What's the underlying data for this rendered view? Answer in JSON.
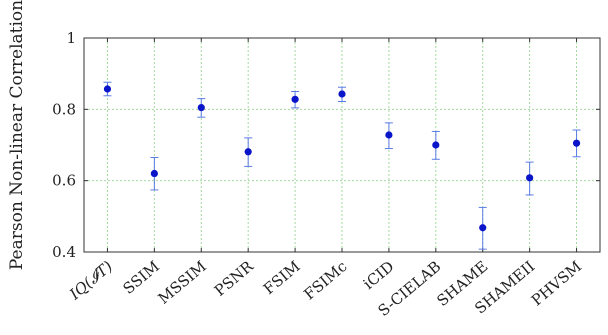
{
  "chart_data": {
    "type": "scatter",
    "ylabel": "Pearson Non-linear Correlation",
    "xlabel": "",
    "ylim": [
      0.4,
      1.0
    ],
    "yticks": [
      0.4,
      0.6,
      0.8,
      1.0
    ],
    "ytick_labels": [
      "0.4",
      "0.6",
      "0.8",
      "1"
    ],
    "grid": true,
    "categories": [
      "IQ(𝓘T)",
      "SSIM",
      "MSSIM",
      "PSNR",
      "FSIM",
      "FSIMc",
      "iCID",
      "S-CIELAB",
      "SHAME",
      "SHAMEII",
      "PHVSM"
    ],
    "values": [
      0.857,
      0.62,
      0.805,
      0.681,
      0.828,
      0.843,
      0.728,
      0.7,
      0.468,
      0.608,
      0.705
    ],
    "error_low": [
      0.838,
      0.574,
      0.778,
      0.64,
      0.804,
      0.822,
      0.69,
      0.66,
      0.408,
      0.56,
      0.667
    ],
    "error_high": [
      0.876,
      0.665,
      0.83,
      0.72,
      0.85,
      0.862,
      0.762,
      0.738,
      0.525,
      0.652,
      0.742
    ],
    "colors": {
      "marker": "#0a14c8",
      "errorbar": "#5a7be6",
      "grid": "#a6d8a0",
      "axis": "#333333"
    }
  }
}
